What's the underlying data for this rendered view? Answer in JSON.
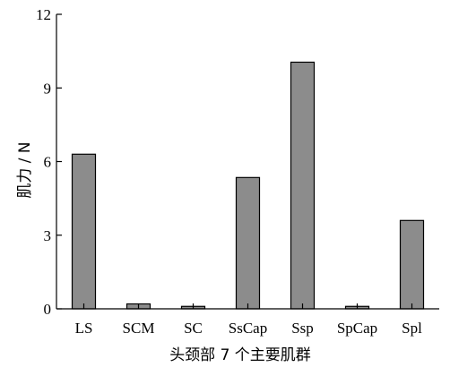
{
  "chart_data": {
    "type": "bar",
    "categories": [
      "LS",
      "SCM",
      "SC",
      "SsCap",
      "Ssp",
      "SpCap",
      "Spl"
    ],
    "values": [
      6.3,
      0.2,
      0.1,
      5.35,
      10.05,
      0.1,
      3.6
    ],
    "xlabel": "头颈部 7 个主要肌群",
    "ylabel": "肌力 / N",
    "ylim": [
      0,
      12
    ],
    "yticks": [
      0,
      3,
      6,
      9,
      12
    ],
    "grid": false,
    "bar_color": "#8c8c8c",
    "edge_color": "#000000"
  }
}
